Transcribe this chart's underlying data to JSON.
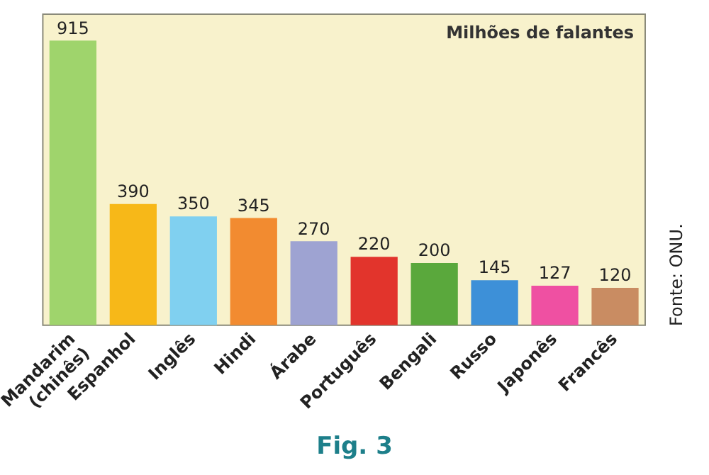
{
  "chart_data": {
    "type": "bar",
    "title": "Milhões de falantes",
    "categories": [
      "Mandarim (chinês)",
      "Espanhol",
      "Inglês",
      "Hindi",
      "Árabe",
      "Português",
      "Bengali",
      "Russo",
      "Japonês",
      "Francês"
    ],
    "values": [
      915,
      390,
      350,
      345,
      270,
      220,
      200,
      145,
      127,
      120
    ],
    "colors": [
      "#9fd46c",
      "#f7b818",
      "#80d0f0",
      "#f28b30",
      "#9ea3d2",
      "#e2342c",
      "#5aa83c",
      "#3d90d8",
      "#ef50a2",
      "#c98c62"
    ],
    "data_labels": true,
    "tick_labels": "x",
    "grid": false,
    "legend": false,
    "annotations": [
      "Fonte: ONU.",
      "Fig. 3"
    ]
  }
}
